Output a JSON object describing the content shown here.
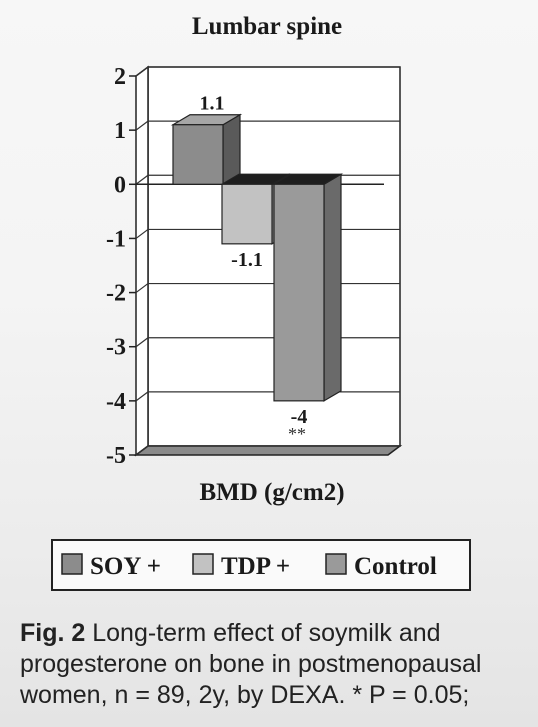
{
  "chart_data": {
    "type": "bar",
    "title": "Lumbar spine",
    "xlabel": "BMD (g/cm2)",
    "ylabel": "",
    "ylim": [
      -5,
      2
    ],
    "yticks": [
      "2",
      "1",
      "0",
      "-1",
      "-2",
      "-3",
      "-4",
      "-5"
    ],
    "grid": true,
    "legend_position": "bottom",
    "series": [
      {
        "name": "SOY +",
        "value": 1.1,
        "label": "1.1",
        "color": "#8c8c8c"
      },
      {
        "name": "TDP +",
        "value": -1.1,
        "label": "-1.1",
        "color": "#c2c2c2"
      },
      {
        "name": "Control",
        "value": -4,
        "label": "-4",
        "color": "#9a9a9a"
      }
    ],
    "annotation": "**"
  },
  "caption": {
    "fig_label": "Fig. 2",
    "text": "Long-term effect of soymilk and progesterone on bone in postmenopausal women, n = 89, 2y, by DEXA. * P = 0.05;"
  }
}
